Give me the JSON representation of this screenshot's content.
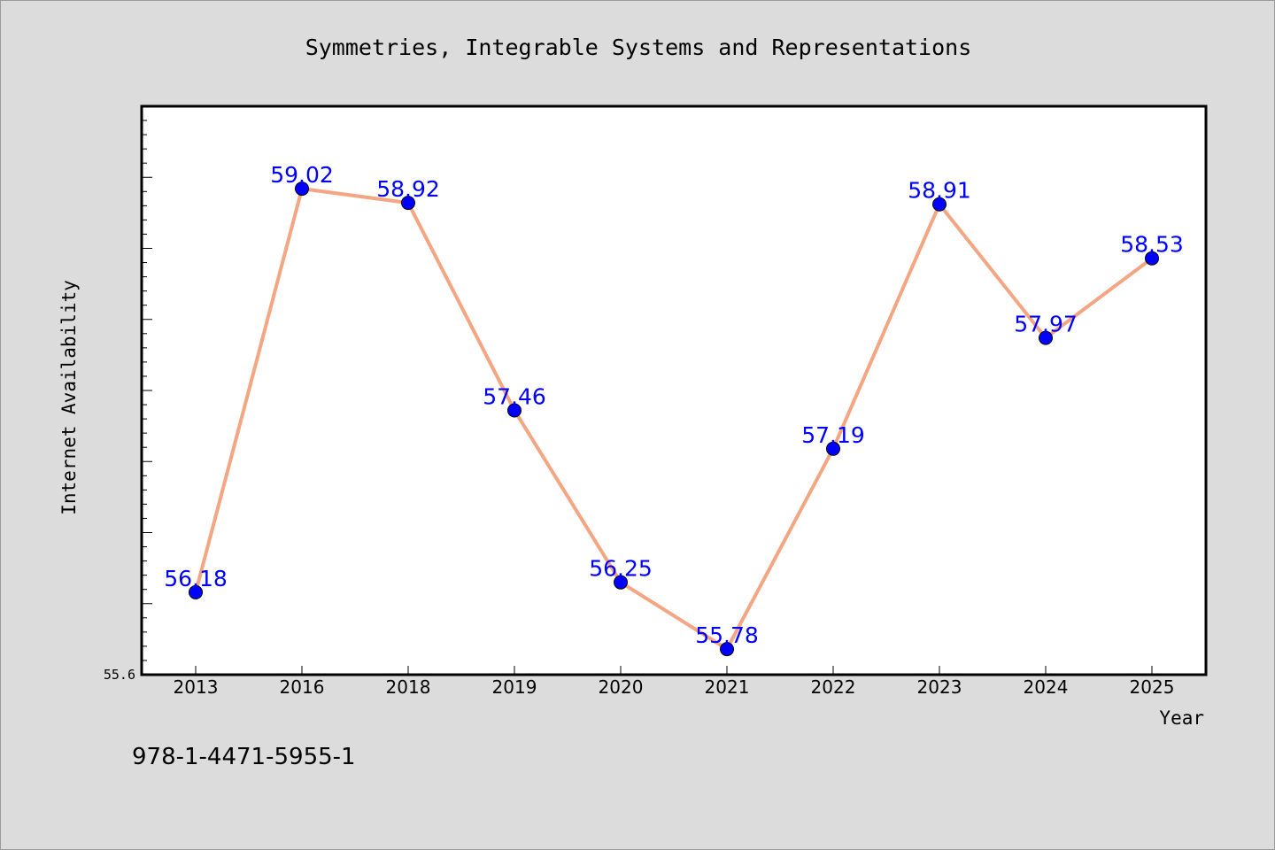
{
  "chart_data": {
    "type": "line",
    "title": "Symmetries, Integrable Systems and Representations",
    "xlabel": "Year",
    "ylabel": "Internet Availability",
    "categories": [
      "2013",
      "2016",
      "2018",
      "2019",
      "2020",
      "2021",
      "2022",
      "2023",
      "2024",
      "2025"
    ],
    "values": [
      56.18,
      59.02,
      58.92,
      57.46,
      56.25,
      55.78,
      57.19,
      58.91,
      57.97,
      58.53
    ],
    "data_labels": [
      "56.18",
      "59.02",
      "58.92",
      "57.46",
      "56.25",
      "55.78",
      "57.19",
      "58.91",
      "57.97",
      "58.53"
    ],
    "y_tick_label": "55.6",
    "ylim": [
      55.6,
      59.6
    ],
    "grid": false,
    "legend": "none",
    "colors": {
      "line": "#f4a582",
      "marker": "#0000ff",
      "data_label": "#0000ff",
      "plot_background": "#ffffff",
      "figure_background": "#dcdcdc"
    }
  },
  "footer": {
    "isbn": "978-1-4471-5955-1"
  }
}
